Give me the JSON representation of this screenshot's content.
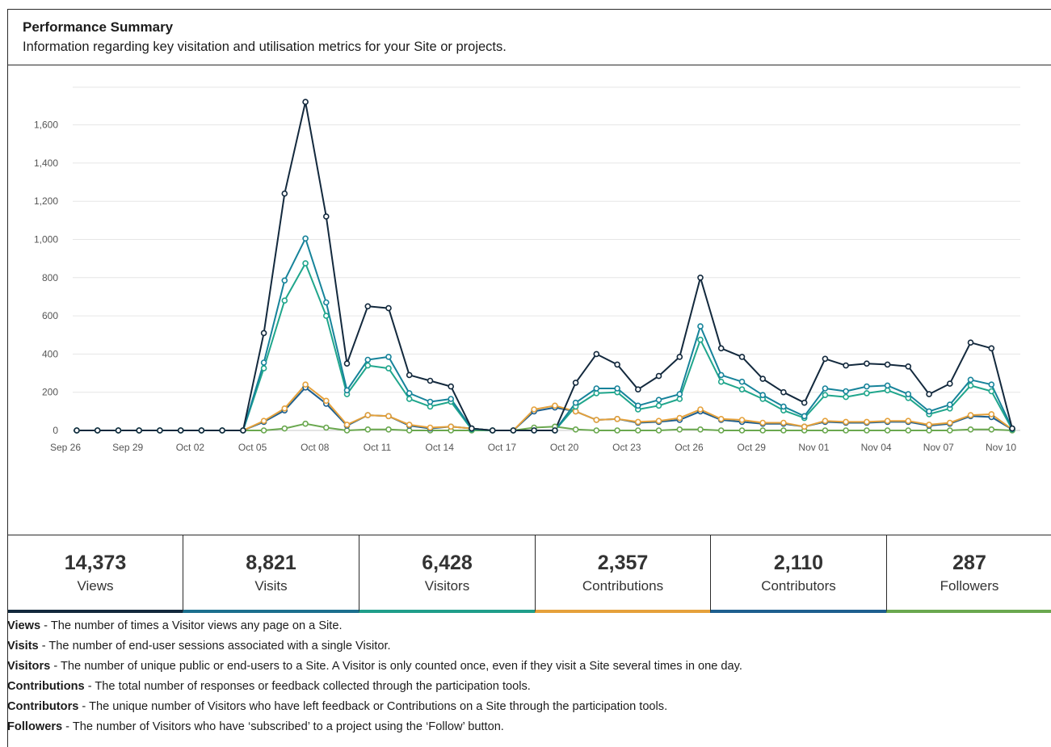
{
  "header": {
    "title": "Performance Summary",
    "subtitle": "Information regarding key visitation and utilisation metrics for your Site or projects."
  },
  "chart_data": {
    "type": "line",
    "title": "",
    "xlabel": "",
    "ylabel": "",
    "ylim": [
      0,
      1700
    ],
    "yticks": [
      0,
      200,
      400,
      600,
      800,
      1000,
      1200,
      1400,
      1600
    ],
    "yticklabels": [
      "0",
      "200",
      "400",
      "600",
      "800",
      "1,000",
      "1,200",
      "1,400",
      "1,600"
    ],
    "xticklabels": [
      "Sep 26",
      "Sep 29",
      "Oct 02",
      "Oct 05",
      "Oct 08",
      "Oct 11",
      "Oct 14",
      "Oct 17",
      "Oct 20",
      "Oct 23",
      "Oct 26",
      "Oct 29",
      "Nov 01",
      "Nov 04",
      "Nov 07",
      "Nov 10"
    ],
    "xtick_every": 3,
    "grid": true,
    "legend": "none",
    "x": [
      "Sep 26",
      "Sep 27",
      "Sep 28",
      "Sep 29",
      "Sep 30",
      "Oct 01",
      "Oct 02",
      "Oct 03",
      "Oct 04",
      "Oct 05",
      "Oct 06",
      "Oct 07",
      "Oct 08",
      "Oct 09",
      "Oct 10",
      "Oct 11",
      "Oct 12",
      "Oct 13",
      "Oct 14",
      "Oct 15",
      "Oct 16",
      "Oct 17",
      "Oct 18",
      "Oct 19",
      "Oct 20",
      "Oct 21",
      "Oct 22",
      "Oct 23",
      "Oct 24",
      "Oct 25",
      "Oct 26",
      "Oct 27",
      "Oct 28",
      "Oct 29",
      "Oct 30",
      "Oct 31",
      "Nov 01",
      "Nov 02",
      "Nov 03",
      "Nov 04",
      "Nov 05",
      "Nov 06",
      "Nov 07",
      "Nov 08",
      "Nov 09",
      "Nov 10"
    ],
    "series": [
      {
        "name": "Views",
        "color": "#13293d",
        "values": [
          0,
          0,
          0,
          0,
          0,
          0,
          0,
          0,
          0,
          510,
          1240,
          1720,
          1120,
          350,
          650,
          640,
          290,
          260,
          230,
          10,
          0,
          0,
          0,
          0,
          250,
          400,
          345,
          215,
          285,
          385,
          800,
          430,
          385,
          270,
          200,
          145,
          375,
          340,
          350,
          345,
          335,
          190,
          245,
          460,
          430,
          10
        ]
      },
      {
        "name": "Visits",
        "color": "#16839a",
        "values": [
          0,
          0,
          0,
          0,
          0,
          0,
          0,
          0,
          0,
          355,
          785,
          1005,
          670,
          210,
          370,
          385,
          195,
          150,
          165,
          10,
          0,
          0,
          0,
          0,
          145,
          220,
          220,
          130,
          160,
          190,
          545,
          290,
          255,
          185,
          125,
          75,
          220,
          205,
          230,
          235,
          190,
          100,
          135,
          265,
          240,
          10
        ]
      },
      {
        "name": "Visitors",
        "color": "#20a68c",
        "values": [
          0,
          0,
          0,
          0,
          0,
          0,
          0,
          0,
          0,
          325,
          680,
          875,
          600,
          190,
          340,
          325,
          165,
          125,
          150,
          5,
          0,
          0,
          0,
          0,
          125,
          195,
          200,
          110,
          130,
          165,
          475,
          255,
          215,
          165,
          105,
          65,
          185,
          175,
          195,
          210,
          170,
          85,
          115,
          235,
          205,
          5
        ]
      },
      {
        "name": "Contributions",
        "color": "#e5a13b",
        "values": [
          0,
          0,
          0,
          0,
          0,
          0,
          0,
          0,
          0,
          50,
          115,
          240,
          155,
          30,
          80,
          75,
          30,
          15,
          20,
          10,
          0,
          0,
          110,
          130,
          100,
          55,
          60,
          45,
          50,
          65,
          110,
          60,
          55,
          40,
          40,
          20,
          50,
          45,
          45,
          50,
          50,
          30,
          40,
          80,
          85,
          5
        ]
      },
      {
        "name": "Contributors",
        "color": "#1e5f8f",
        "values": [
          0,
          0,
          0,
          0,
          0,
          0,
          0,
          0,
          0,
          45,
          105,
          225,
          140,
          25,
          80,
          75,
          25,
          10,
          20,
          10,
          0,
          0,
          100,
          120,
          100,
          55,
          60,
          40,
          45,
          55,
          100,
          55,
          45,
          35,
          35,
          20,
          45,
          40,
          40,
          45,
          45,
          25,
          35,
          75,
          70,
          5
        ]
      },
      {
        "name": "Followers",
        "color": "#6aa84f",
        "values": [
          0,
          0,
          0,
          0,
          0,
          0,
          0,
          0,
          0,
          0,
          10,
          35,
          15,
          0,
          5,
          5,
          0,
          0,
          0,
          0,
          0,
          0,
          15,
          20,
          5,
          0,
          0,
          0,
          0,
          5,
          5,
          0,
          0,
          0,
          0,
          0,
          0,
          0,
          0,
          0,
          0,
          0,
          0,
          5,
          5,
          0
        ]
      }
    ]
  },
  "tiles": [
    {
      "value": "14,373",
      "label": "Views",
      "color": "#13293d"
    },
    {
      "value": "8,821",
      "label": "Visits",
      "color": "#1b6f8e"
    },
    {
      "value": "6,428",
      "label": "Visitors",
      "color": "#1f9e8a"
    },
    {
      "value": "2,357",
      "label": "Contributions",
      "color": "#e5a13b"
    },
    {
      "value": "2,110",
      "label": "Contributors",
      "color": "#1e5f8f"
    },
    {
      "value": "287",
      "label": "Followers",
      "color": "#6aa84f"
    }
  ],
  "definitions": [
    {
      "term": "Views",
      "text": " - The number of times a Visitor views any page on a Site."
    },
    {
      "term": "Visits",
      "text": " - The number of end-user sessions associated with a single Visitor."
    },
    {
      "term": "Visitors",
      "text": " - The number of unique public or end-users to a Site. A Visitor is only counted once, even if they visit a Site several times in one day."
    },
    {
      "term": "Contributions",
      "text": " - The total number of responses or feedback collected through the participation tools."
    },
    {
      "term": "Contributors",
      "text": " - The unique number of Visitors who have left feedback or Contributions on a Site through the participation tools."
    },
    {
      "term": "Followers",
      "text": " - The number of Visitors who have ‘subscribed’ to a project using the ‘Follow’ button."
    }
  ]
}
